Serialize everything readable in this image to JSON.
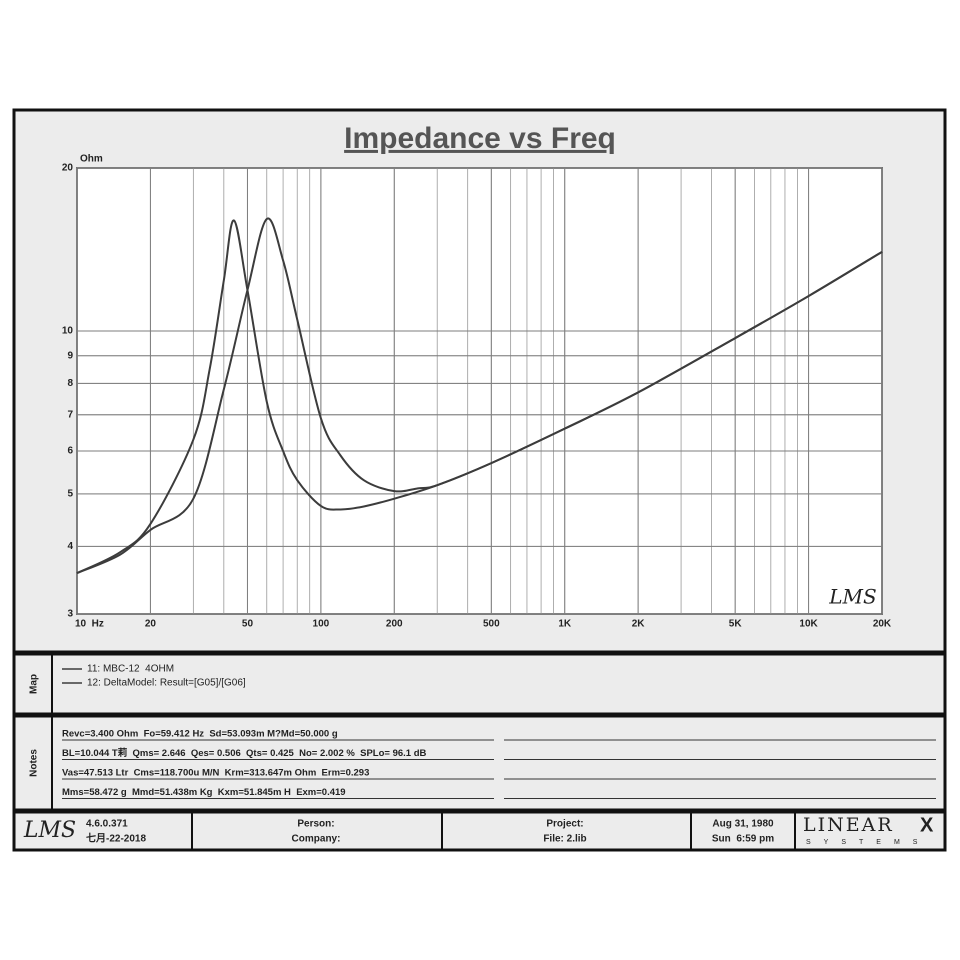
{
  "chart_data": {
    "type": "line",
    "title": "Impedance vs Freq",
    "y_label": "Ohm",
    "xscale": "log",
    "yscale": "log",
    "grid": true,
    "minor_grid": true,
    "xlim": [
      10,
      20000
    ],
    "ylim": [
      3,
      20
    ],
    "xticks": [
      {
        "value": 10,
        "label": "10  Hz"
      },
      20,
      50,
      100,
      200,
      500,
      {
        "value": 1000,
        "label": "1K"
      },
      {
        "value": 2000,
        "label": "2K"
      },
      {
        "value": 5000,
        "label": "5K"
      },
      {
        "value": 10000,
        "label": "10K"
      },
      {
        "value": 20000,
        "label": "20K"
      }
    ],
    "yticks": [
      3,
      4,
      5,
      6,
      7,
      8,
      9,
      10,
      20
    ],
    "watermark": "LMS",
    "series": [
      {
        "name": "11: MBC-12  4OHM",
        "color": "#3c3c3c",
        "x": [
          10,
          15,
          20,
          30,
          40,
          50,
          60,
          70,
          80,
          100,
          120,
          150,
          200,
          250,
          300,
          500,
          1000,
          2000,
          5000,
          10000,
          20000
        ],
        "values": [
          3.57,
          3.86,
          4.29,
          4.9,
          7.8,
          11.9,
          16.1,
          13.5,
          10.5,
          6.9,
          5.9,
          5.3,
          5.06,
          5.12,
          5.19,
          5.7,
          6.6,
          7.7,
          9.7,
          11.6,
          14.0
        ]
      },
      {
        "name": "12: DeltaModel: Result=[G05]/[G06]",
        "color": "#3c3c3c",
        "x": [
          10,
          15,
          20,
          30,
          35,
          40,
          44,
          50,
          60,
          70,
          80,
          100,
          120,
          150,
          200,
          300,
          500,
          1000,
          2000,
          5000,
          10000,
          20000
        ],
        "values": [
          3.57,
          3.9,
          4.4,
          6.3,
          8.5,
          12.4,
          16.0,
          11.9,
          7.4,
          6.0,
          5.3,
          4.75,
          4.68,
          4.74,
          4.9,
          5.19,
          5.7,
          6.6,
          7.7,
          9.7,
          11.6,
          14.0
        ]
      }
    ]
  },
  "map": {
    "label": "Map"
  },
  "notes": {
    "label": "Notes",
    "lines": [
      "Revc=3.400 Ohm  Fo=59.412 Hz  Sd=53.093m M?Md=50.000 g",
      "BL=10.044 T莉  Qms= 2.646  Qes= 0.506  Qts= 0.425  No= 2.002 %  SPLo= 96.1 dB",
      "Vas=47.513 Ltr  Cms=118.700u M/N  Krm=313.647m Ohm  Erm=0.293",
      "Mms=58.472 g  Mmd=51.438m Kg  Kxm=51.845m H  Exm=0.419"
    ]
  },
  "footer": {
    "logo": "LMS",
    "version": "4.6.0.371",
    "date": "七月-22-2018",
    "person": "Person:",
    "company": "Company:",
    "project": "Project:",
    "file": "File: 2.lib",
    "report_date": "Aug 31, 1980",
    "report_time": "Sun  6:59 pm",
    "brand": "LINEAR",
    "brand_mark": "X",
    "brand_sub": "SYSTEMS"
  }
}
